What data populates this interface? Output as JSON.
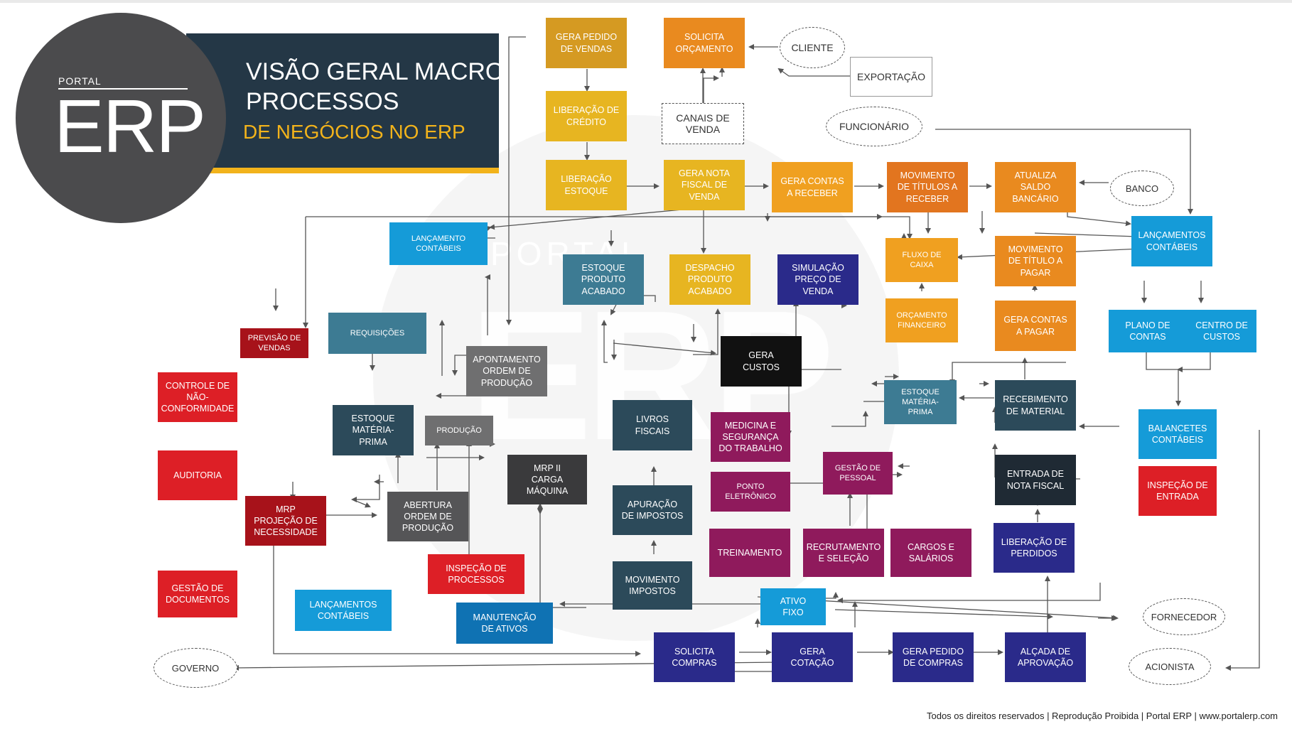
{
  "logo": {
    "portal": "PORTAL",
    "erp": "ERP"
  },
  "title": {
    "line1": "VISÃO GERAL MACRO",
    "line2": "PROCESSOS",
    "line3": "DE NEGÓCIOS NO ERP"
  },
  "watermark": {
    "portal": "PORTAL",
    "erp": "ERP"
  },
  "colors": {
    "orange": "#e98a1f",
    "amber": "#d59a22",
    "yellow": "#e7b521",
    "darkteal": "#2c4a5a",
    "teal": "#3d7b93",
    "blue": "#159bd8",
    "red": "#dd1f26",
    "darkred": "#a7121a",
    "purple": "#2a2a8a",
    "magenta": "#8f1a5c",
    "gray": "#6f6f70",
    "black": "#111111",
    "banner": "#243746",
    "accent": "#f2b31b"
  },
  "boxes": {
    "gera_pedido_vendas": "GERA PEDIDO\nDE VENDAS",
    "solicita_orcamento": "SOLICITA\nORÇAMENTO",
    "liberacao_credito": "LIBERAÇÃO DE\nCRÉDITO",
    "liberacao_estoque": "LIBERAÇÃO\nESTOQUE",
    "gera_nota_fiscal_venda": "GERA NOTA\nFISCAL DE\nVENDA",
    "gera_contas_receber": "GERA CONTAS\nA RECEBER",
    "movimento_titulos_receber": "MOVIMENTO\nDE TÍTULOS A\nRECEBER",
    "atualiza_saldo_bancario": "ATUALIZA\nSALDO BANCÁRIO",
    "lancamentos_contabeis_right": "LANÇAMENTOS\nCONTÁBEIS",
    "lancamento_contabeis_top": "LANÇAMENTO\nCONTÁBEIS",
    "estoque_produto_acabado": "ESTOQUE\nPRODUTO\nACABADO",
    "despacho_produto_acabado": "DESPACHO\nPRODUTO\nACABADO",
    "simulacao_preco_venda": "SIMULAÇÃO\nPREÇO DE\nVENDA",
    "fluxo_caixa": "FLUXO DE\nCAIXA",
    "movimento_titulo_pagar": "MOVIMENTO\nDE TÍTULO A\nPAGAR",
    "orcamento_financeiro": "ORÇAMENTO\nFINANCEIRO",
    "gera_contas_pagar": "GERA CONTAS\nA PAGAR",
    "plano_contas": "PLANO DE\nCONTAS",
    "centro_custos": "CENTRO DE\nCUSTOS",
    "previsao_vendas": "PREVISÃO DE\nVENDAS",
    "requisicoes": "REQUISIÇÕES",
    "apontamento_ordem_producao": "APONTAMENTO\nORDEM DE\nPRODUÇÃO",
    "gera_custos": "GERA\nCUSTOS",
    "controle_nao_conformidade": "CONTROLE DE\nNÃO-\nCONFORMIDADE",
    "estoque_materia_prima_left": "ESTOQUE\nMATÉRIA-\nPRIMA",
    "producao": "PRODUÇÃO",
    "livros_fiscais": "LIVROS\nFISCAIS",
    "medicina_seguranca": "MEDICINA E\nSEGURANÇA\nDO TRABALHO",
    "estoque_materia_prima_right": "ESTOQUE\nMATÉRIA-\nPRIMA",
    "recebimento_material": "RECEBIMENTO\nDE MATERIAL",
    "balancetes_contabeis": "BALANCETES\nCONTÁBEIS",
    "auditoria": "AUDITORIA",
    "mrp_ii_carga_maquina": "MRP II\nCARGA\nMÁQUINA",
    "gestao_pessoal": "GESTÃO DE\nPESSOAL",
    "ponto_eletronico": "PONTO\nELETRÔNICO",
    "entrada_nota_fiscal": "ENTRADA DE\nNOTA FISCAL",
    "inspecao_entrada": "INSPEÇÃO DE\nENTRADA",
    "mrp_projecao_necessidade": "MRP\nPROJEÇÃO DE\nNECESSIDADE",
    "abertura_ordem_producao": "ABERTURA\nORDEM DE\nPRODUÇÃO",
    "apuracao_impostos": "APURAÇÃO\nDE IMPOSTOS",
    "treinamento": "TREINAMENTO",
    "recrutamento_selecao": "RECRUTAMENTO\nE SELEÇÃO",
    "cargos_salarios": "CARGOS E\nSALÁRIOS",
    "liberacao_perdidos": "LIBERAÇÃO DE\nPERDIDOS",
    "inspecao_processos": "INSPEÇÃO DE\nPROCESSOS",
    "gestao_documentos": "GESTÃO DE\nDOCUMENTOS",
    "lancamentos_contabeis_bottom": "LANÇAMENTOS\nCONTÁBEIS",
    "movimento_impostos": "MOVIMENTO\nIMPOSTOS",
    "ativo_fixo": "ATIVO\nFIXO",
    "manutencao_ativos": "MANUTENÇÃO\nDE ATIVOS",
    "solicita_compras": "SOLICITA\nCOMPRAS",
    "gera_cotacao": "GERA\nCOTAÇÃO",
    "gera_pedido_compras": "GERA PEDIDO\nDE COMPRAS",
    "alcada_aprovacao": "ALÇADA DE\nAPROVAÇÃO"
  },
  "externals": {
    "cliente": "CLIENTE",
    "exportacao": "EXPORTAÇÃO",
    "canais_venda": "CANAIS DE\nVENDA",
    "funcionario": "FUNCIONÁRIO",
    "banco": "BANCO",
    "fornecedor": "FORNECEDOR",
    "acionista": "ACIONISTA",
    "governo": "GOVERNO"
  },
  "footer": "Todos os direitos reservados | Reprodução Proibida | Portal ERP | www.portalerp.com"
}
